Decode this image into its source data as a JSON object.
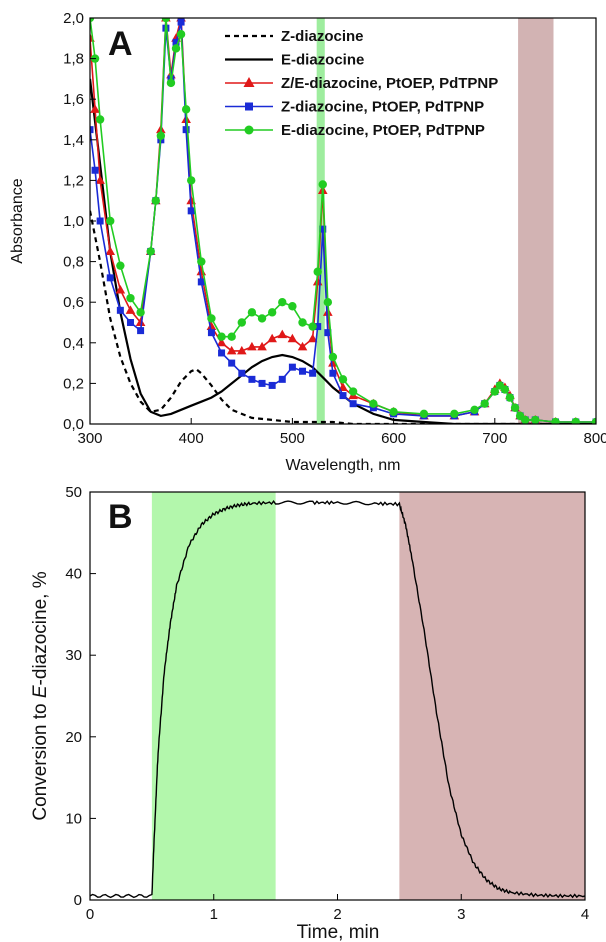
{
  "chart_data": [
    {
      "panel": "A",
      "type": "line",
      "xlabel": "Wavelength, nm",
      "ylabel": "Absorbance",
      "xlim": [
        300,
        800
      ],
      "ylim": [
        0,
        2.0
      ],
      "xticks": [
        300,
        400,
        500,
        600,
        700,
        800
      ],
      "yticks": [
        "0,0",
        "0,2",
        "0,4",
        "0,6",
        "0,8",
        "1,0",
        "1,2",
        "1,4",
        "1,6",
        "1,8",
        "2,0"
      ],
      "shaded_regions": [
        {
          "x": [
            524,
            532
          ],
          "color": "#86e986"
        },
        {
          "x": [
            723,
            758
          ],
          "color": "#c7a0a0"
        }
      ],
      "legend_position": "top-right",
      "series": [
        {
          "name": "Z-diazocine",
          "color": "#000000",
          "style": "dashed",
          "x": [
            300,
            310,
            320,
            330,
            340,
            350,
            360,
            370,
            380,
            390,
            400,
            405,
            410,
            420,
            430,
            440,
            450,
            460,
            480,
            500,
            520,
            540,
            560,
            600,
            650,
            700,
            750,
            800
          ],
          "y": [
            1.05,
            0.8,
            0.52,
            0.33,
            0.2,
            0.11,
            0.06,
            0.07,
            0.13,
            0.21,
            0.26,
            0.27,
            0.25,
            0.19,
            0.12,
            0.07,
            0.05,
            0.03,
            0.02,
            0.01,
            0.01,
            0.01,
            0.0,
            0.0,
            0.0,
            0.0,
            0.0,
            0.0
          ]
        },
        {
          "name": "E-diazocine",
          "color": "#000000",
          "style": "solid",
          "x": [
            300,
            310,
            320,
            330,
            340,
            350,
            360,
            370,
            380,
            390,
            400,
            410,
            420,
            430,
            440,
            450,
            460,
            470,
            480,
            490,
            500,
            510,
            520,
            530,
            540,
            550,
            560,
            580,
            600,
            630,
            660,
            700,
            750,
            800
          ],
          "y": [
            1.7,
            1.28,
            0.85,
            0.55,
            0.32,
            0.15,
            0.06,
            0.04,
            0.05,
            0.07,
            0.09,
            0.11,
            0.13,
            0.16,
            0.2,
            0.24,
            0.28,
            0.31,
            0.33,
            0.34,
            0.33,
            0.31,
            0.28,
            0.23,
            0.18,
            0.14,
            0.1,
            0.05,
            0.02,
            0.01,
            0.0,
            0.0,
            0.0,
            0.0
          ]
        },
        {
          "name": "Z/E-diazocine, PtOEP, PdTPNP",
          "color": "#e01818",
          "marker": "triangle",
          "x": [
            300,
            305,
            310,
            320,
            330,
            340,
            350,
            360,
            365,
            370,
            375,
            380,
            385,
            390,
            395,
            400,
            410,
            420,
            430,
            440,
            450,
            460,
            470,
            480,
            490,
            500,
            510,
            520,
            525,
            530,
            535,
            540,
            550,
            560,
            580,
            600,
            630,
            660,
            680,
            690,
            700,
            705,
            710,
            715,
            720,
            725,
            730,
            740,
            760,
            780,
            800
          ],
          "y": [
            1.9,
            1.55,
            1.2,
            0.85,
            0.66,
            0.56,
            0.5,
            0.85,
            1.1,
            1.45,
            2.0,
            1.72,
            1.9,
            2.0,
            1.5,
            1.1,
            0.75,
            0.48,
            0.4,
            0.36,
            0.36,
            0.38,
            0.38,
            0.42,
            0.44,
            0.42,
            0.38,
            0.42,
            0.7,
            1.15,
            0.55,
            0.3,
            0.18,
            0.14,
            0.1,
            0.06,
            0.04,
            0.04,
            0.06,
            0.1,
            0.17,
            0.2,
            0.18,
            0.14,
            0.08,
            0.04,
            0.02,
            0.02,
            0.01,
            0.01,
            0.01
          ]
        },
        {
          "name": "Z-diazocine, PtOEP, PdTPNP",
          "color": "#1a2bd6",
          "marker": "square",
          "x": [
            300,
            305,
            310,
            320,
            330,
            340,
            350,
            360,
            365,
            370,
            375,
            380,
            385,
            390,
            395,
            400,
            410,
            420,
            430,
            440,
            450,
            460,
            470,
            480,
            490,
            500,
            510,
            520,
            525,
            530,
            535,
            540,
            550,
            560,
            580,
            600,
            630,
            660,
            680,
            690,
            700,
            705,
            710,
            715,
            720,
            725,
            730,
            740,
            760,
            780,
            800
          ],
          "y": [
            1.45,
            1.25,
            1.0,
            0.72,
            0.56,
            0.5,
            0.46,
            0.85,
            1.1,
            1.4,
            1.95,
            1.7,
            1.88,
            1.98,
            1.45,
            1.05,
            0.7,
            0.45,
            0.35,
            0.3,
            0.25,
            0.22,
            0.2,
            0.19,
            0.22,
            0.28,
            0.26,
            0.25,
            0.48,
            0.96,
            0.45,
            0.25,
            0.14,
            0.1,
            0.08,
            0.05,
            0.04,
            0.04,
            0.06,
            0.1,
            0.16,
            0.19,
            0.17,
            0.13,
            0.08,
            0.04,
            0.02,
            0.02,
            0.01,
            0.01,
            0.01
          ]
        },
        {
          "name": "E-diazocine, PtOEP, PdTPNP",
          "color": "#22cc22",
          "marker": "circle",
          "x": [
            300,
            305,
            310,
            320,
            330,
            340,
            350,
            360,
            365,
            370,
            375,
            380,
            385,
            390,
            395,
            400,
            410,
            420,
            430,
            440,
            450,
            460,
            470,
            480,
            490,
            500,
            510,
            520,
            525,
            530,
            535,
            540,
            550,
            560,
            580,
            600,
            630,
            660,
            680,
            690,
            700,
            705,
            710,
            715,
            720,
            725,
            730,
            740,
            760,
            780,
            800
          ],
          "y": [
            2.0,
            1.8,
            1.5,
            1.0,
            0.78,
            0.62,
            0.55,
            0.85,
            1.1,
            1.42,
            2.0,
            1.68,
            1.85,
            1.92,
            1.55,
            1.2,
            0.8,
            0.52,
            0.43,
            0.43,
            0.5,
            0.55,
            0.52,
            0.55,
            0.6,
            0.58,
            0.5,
            0.48,
            0.75,
            1.18,
            0.6,
            0.33,
            0.22,
            0.16,
            0.1,
            0.06,
            0.05,
            0.05,
            0.07,
            0.1,
            0.16,
            0.19,
            0.17,
            0.13,
            0.08,
            0.04,
            0.02,
            0.02,
            0.01,
            0.01,
            0.01
          ]
        }
      ]
    },
    {
      "panel": "B",
      "type": "line",
      "xlabel": "Time, min",
      "ylabel": "Conversion to E-diazocine, %",
      "xlim": [
        0,
        4
      ],
      "ylim": [
        0,
        50
      ],
      "xticks": [
        0,
        1,
        2,
        3,
        4
      ],
      "yticks": [
        0,
        10,
        20,
        30,
        40,
        50
      ],
      "shaded_regions": [
        {
          "x": [
            0.5,
            1.5
          ],
          "color": "#b3f7ac"
        },
        {
          "x": [
            2.5,
            4.0
          ],
          "color": "#d7b4b4"
        }
      ],
      "series": [
        {
          "color": "#000000",
          "style": "solid",
          "x": [
            0,
            0.25,
            0.5,
            0.52,
            0.55,
            0.6,
            0.65,
            0.7,
            0.8,
            0.9,
            1.0,
            1.1,
            1.2,
            1.3,
            1.5,
            1.8,
            2.0,
            2.3,
            2.5,
            2.55,
            2.6,
            2.7,
            2.8,
            2.9,
            3.0,
            3.1,
            3.2,
            3.3,
            3.4,
            3.6,
            3.8,
            4.0
          ],
          "y": [
            0.5,
            0.5,
            0.5,
            8,
            18,
            28,
            34,
            38.5,
            43.5,
            46,
            47.3,
            48,
            48.4,
            48.6,
            48.7,
            48.7,
            48.7,
            48.6,
            48.5,
            46,
            42,
            33,
            23,
            14,
            8,
            4.5,
            2.5,
            1.4,
            0.9,
            0.6,
            0.5,
            0.5
          ]
        }
      ]
    }
  ]
}
